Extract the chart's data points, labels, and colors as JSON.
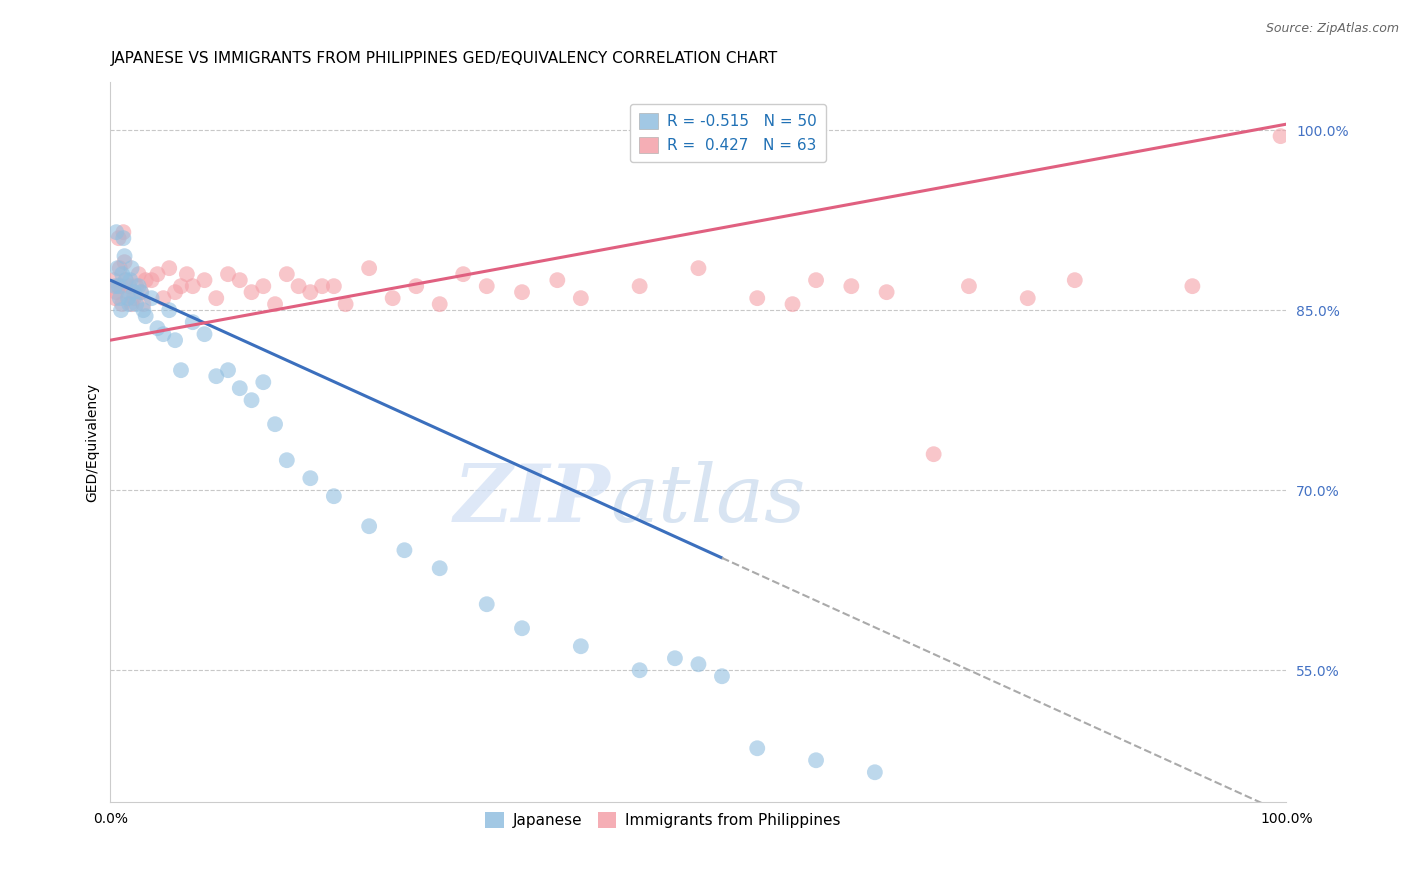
{
  "title": "JAPANESE VS IMMIGRANTS FROM PHILIPPINES GED/EQUIVALENCY CORRELATION CHART",
  "source": "Source: ZipAtlas.com",
  "ylabel": "GED/Equivalency",
  "xlabel": "",
  "watermark_zip": "ZIP",
  "watermark_atlas": "atlas",
  "legend_blue_label": "Japanese",
  "legend_pink_label": "Immigrants from Philippines",
  "R_blue": -0.515,
  "N_blue": 50,
  "R_pink": 0.427,
  "N_pink": 63,
  "xmin": 0.0,
  "xmax": 100.0,
  "ymin": 44.0,
  "ymax": 104.0,
  "yticks": [
    55.0,
    70.0,
    85.0,
    100.0
  ],
  "xtick_labels": [
    "0.0%",
    "100.0%"
  ],
  "ytick_labels": [
    "55.0%",
    "70.0%",
    "85.0%",
    "100.0%"
  ],
  "blue_color": "#92bfe0",
  "blue_line_color": "#3b6fbd",
  "pink_color": "#f4a0a8",
  "pink_line_color": "#e06080",
  "scatter_alpha": 0.6,
  "scatter_size": 130,
  "blue_trend_x0": 0.0,
  "blue_trend_y0": 87.5,
  "blue_trend_x1": 100.0,
  "blue_trend_y1": 43.0,
  "blue_solid_end_x": 52.0,
  "pink_trend_x0": 0.0,
  "pink_trend_y0": 82.5,
  "pink_trend_x1": 100.0,
  "pink_trend_y1": 100.5,
  "blue_scatter_x": [
    0.4,
    0.5,
    0.6,
    0.7,
    0.8,
    0.9,
    1.0,
    1.1,
    1.2,
    1.3,
    1.5,
    1.6,
    1.7,
    1.8,
    2.0,
    2.2,
    2.4,
    2.6,
    2.8,
    3.0,
    3.5,
    4.0,
    4.5,
    5.0,
    5.5,
    6.0,
    7.0,
    8.0,
    9.0,
    10.0,
    11.0,
    12.0,
    13.0,
    14.0,
    15.0,
    17.0,
    19.0,
    22.0,
    25.0,
    28.0,
    32.0,
    35.0,
    40.0,
    45.0,
    48.0,
    50.0,
    52.0,
    55.0,
    60.0,
    65.0
  ],
  "blue_scatter_y": [
    87.0,
    91.5,
    88.5,
    87.0,
    86.0,
    85.0,
    88.0,
    91.0,
    89.5,
    87.5,
    86.0,
    85.5,
    87.5,
    88.5,
    86.5,
    85.5,
    87.0,
    86.5,
    85.0,
    84.5,
    86.0,
    83.5,
    83.0,
    85.0,
    82.5,
    80.0,
    84.0,
    83.0,
    79.5,
    80.0,
    78.5,
    77.5,
    79.0,
    75.5,
    72.5,
    71.0,
    69.5,
    67.0,
    65.0,
    63.5,
    60.5,
    58.5,
    57.0,
    55.0,
    56.0,
    55.5,
    54.5,
    48.5,
    47.5,
    46.5
  ],
  "pink_scatter_x": [
    0.3,
    0.4,
    0.5,
    0.6,
    0.7,
    0.8,
    0.9,
    1.0,
    1.1,
    1.2,
    1.3,
    1.5,
    1.6,
    1.8,
    2.0,
    2.2,
    2.4,
    2.6,
    2.8,
    3.0,
    3.5,
    4.0,
    4.5,
    5.0,
    5.5,
    6.0,
    6.5,
    7.0,
    8.0,
    9.0,
    10.0,
    11.0,
    12.0,
    13.0,
    14.0,
    15.0,
    16.0,
    17.0,
    18.0,
    19.0,
    20.0,
    22.0,
    24.0,
    26.0,
    28.0,
    30.0,
    32.0,
    35.0,
    38.0,
    40.0,
    45.0,
    50.0,
    55.0,
    58.0,
    60.0,
    63.0,
    66.0,
    70.0,
    73.0,
    78.0,
    82.0,
    92.0,
    99.5
  ],
  "pink_scatter_y": [
    87.5,
    86.0,
    86.5,
    87.0,
    91.0,
    88.5,
    87.0,
    85.5,
    91.5,
    89.0,
    87.5,
    86.5,
    87.0,
    85.5,
    86.0,
    87.0,
    88.0,
    86.5,
    85.5,
    87.5,
    87.5,
    88.0,
    86.0,
    88.5,
    86.5,
    87.0,
    88.0,
    87.0,
    87.5,
    86.0,
    88.0,
    87.5,
    86.5,
    87.0,
    85.5,
    88.0,
    87.0,
    86.5,
    87.0,
    87.0,
    85.5,
    88.5,
    86.0,
    87.0,
    85.5,
    88.0,
    87.0,
    86.5,
    87.5,
    86.0,
    87.0,
    88.5,
    86.0,
    85.5,
    87.5,
    87.0,
    86.5,
    73.0,
    87.0,
    86.0,
    87.5,
    87.0,
    99.5
  ],
  "background_color": "#ffffff",
  "grid_color": "#c8c8c8",
  "title_fontsize": 11,
  "axis_fontsize": 10,
  "tick_fontsize": 10,
  "legend_fontsize": 11,
  "source_fontsize": 9
}
